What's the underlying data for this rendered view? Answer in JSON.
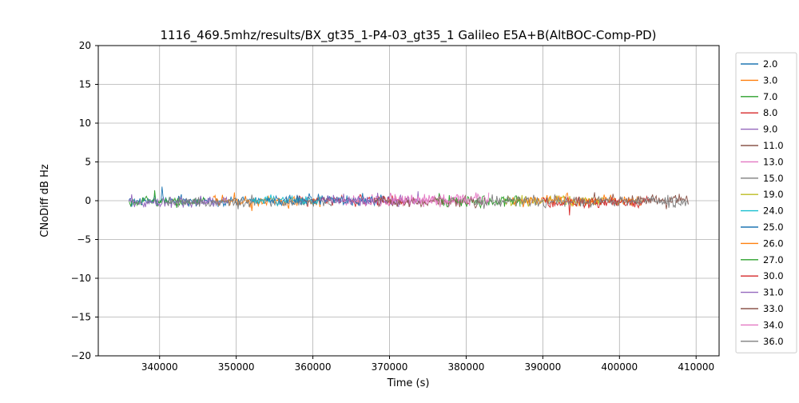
{
  "chart_data": {
    "type": "line",
    "title": "1116_469.5mhz/results/BX_gt35_1-P4-03_gt35_1 Galileo E5A+B(AltBOC-Comp-PD)",
    "xlabel": "Time (s)",
    "ylabel": "CNoDiff dB Hz",
    "xlim": [
      332000,
      413000
    ],
    "ylim": [
      -20,
      20
    ],
    "xticks": [
      340000,
      350000,
      360000,
      370000,
      380000,
      390000,
      400000,
      410000
    ],
    "yticks": [
      -20,
      -15,
      -10,
      -5,
      0,
      5,
      10,
      15,
      20
    ],
    "grid": true,
    "legend_position": "outside-right",
    "sample_dt": 120,
    "series": [
      {
        "name": "2.0",
        "color": "#1f77b4",
        "x_start": 336000,
        "x_end": 353000,
        "mean": 0,
        "amplitude": 0.55,
        "seed": 101
      },
      {
        "name": "3.0",
        "color": "#ff7f0e",
        "x_start": 347000,
        "x_end": 361000,
        "mean": 0,
        "amplitude": 0.6,
        "seed": 102
      },
      {
        "name": "7.0",
        "color": "#2ca02c",
        "x_start": 336000,
        "x_end": 346000,
        "mean": -0.1,
        "amplitude": 0.5,
        "seed": 103
      },
      {
        "name": "8.0",
        "color": "#d62728",
        "x_start": 358000,
        "x_end": 372000,
        "mean": 0.1,
        "amplitude": 0.55,
        "seed": 104
      },
      {
        "name": "9.0",
        "color": "#9467bd",
        "x_start": 336000,
        "x_end": 349000,
        "mean": -0.2,
        "amplitude": 0.55,
        "seed": 105
      },
      {
        "name": "11.0",
        "color": "#8c564b",
        "x_start": 394000,
        "x_end": 409000,
        "mean": 0,
        "amplitude": 0.6,
        "seed": 106
      },
      {
        "name": "13.0",
        "color": "#e377c2",
        "x_start": 364000,
        "x_end": 379000,
        "mean": -0.1,
        "amplitude": 0.6,
        "seed": 107
      },
      {
        "name": "15.0",
        "color": "#7f7f7f",
        "x_start": 341000,
        "x_end": 363000,
        "mean": -0.2,
        "amplitude": 0.55,
        "seed": 108
      },
      {
        "name": "19.0",
        "color": "#bcbd22",
        "x_start": 385000,
        "x_end": 398000,
        "mean": 0,
        "amplitude": 0.55,
        "seed": 109
      },
      {
        "name": "24.0",
        "color": "#17becf",
        "x_start": 352000,
        "x_end": 361000,
        "mean": 0,
        "amplitude": 0.5,
        "seed": 110
      },
      {
        "name": "25.0",
        "color": "#1f77b4",
        "x_start": 354000,
        "x_end": 369000,
        "mean": 0.1,
        "amplitude": 0.55,
        "seed": 111
      },
      {
        "name": "26.0",
        "color": "#ff7f0e",
        "x_start": 386000,
        "x_end": 403000,
        "mean": 0,
        "amplitude": 0.6,
        "seed": 112
      },
      {
        "name": "27.0",
        "color": "#2ca02c",
        "x_start": 376000,
        "x_end": 387000,
        "mean": 0,
        "amplitude": 0.7,
        "seed": 113
      },
      {
        "name": "30.0",
        "color": "#d62728",
        "x_start": 390000,
        "x_end": 404000,
        "mean": -0.2,
        "amplitude": 0.6,
        "seed": 114
      },
      {
        "name": "31.0",
        "color": "#9467bd",
        "x_start": 361000,
        "x_end": 374000,
        "mean": 0,
        "amplitude": 0.55,
        "seed": 115
      },
      {
        "name": "33.0",
        "color": "#8c564b",
        "x_start": 368000,
        "x_end": 382000,
        "mean": -0.1,
        "amplitude": 0.55,
        "seed": 116
      },
      {
        "name": "34.0",
        "color": "#e377c2",
        "x_start": 370000,
        "x_end": 383000,
        "mean": 0.1,
        "amplitude": 0.6,
        "seed": 117
      },
      {
        "name": "36.0",
        "color": "#7f7f7f",
        "x_start": 381000,
        "x_end": 409000,
        "mean": -0.1,
        "amplitude": 0.55,
        "seed": 118
      }
    ],
    "style": {
      "grid_color": "#b0b0b0",
      "spine_color": "#000000",
      "legend_border_color": "#cccccc",
      "line_width": 0.9
    }
  }
}
